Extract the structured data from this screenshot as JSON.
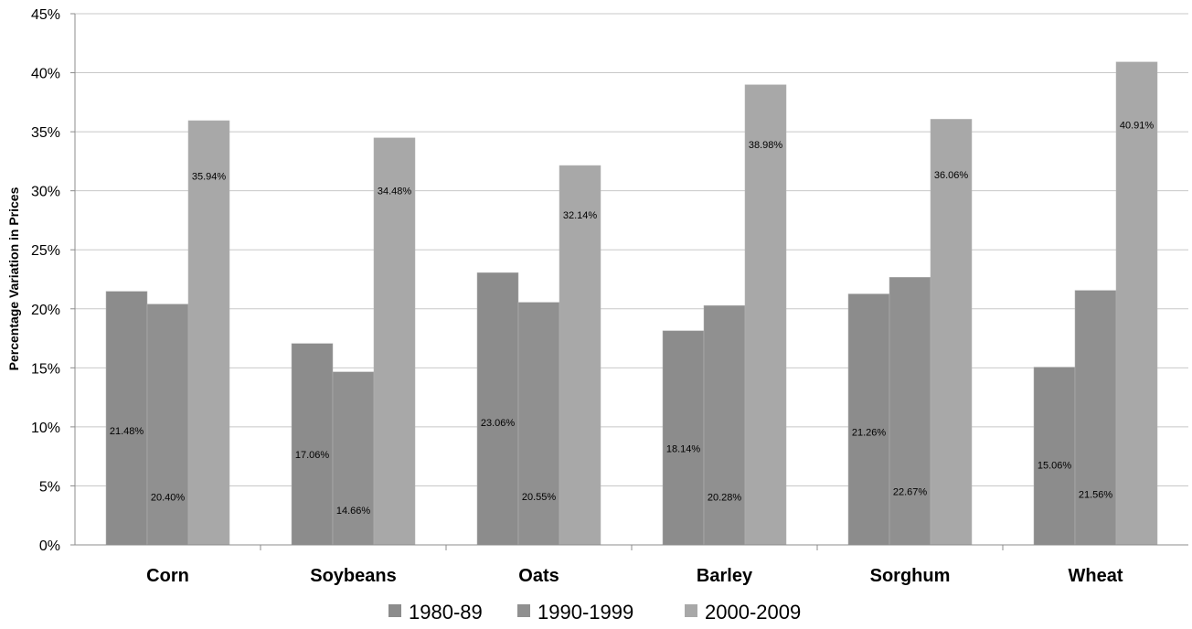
{
  "chart_data": {
    "type": "bar",
    "title": "",
    "xlabel": "",
    "ylabel": "Percentage Variation in Prices",
    "categories": [
      "Corn",
      "Soybeans",
      "Oats",
      "Barley",
      "Sorghum",
      "Wheat"
    ],
    "series": [
      {
        "name": "1980-89",
        "color": "#8c8c8c",
        "values": [
          21.48,
          17.06,
          23.06,
          18.14,
          21.26,
          15.06
        ],
        "labels": [
          "21.48%",
          "17.06%",
          "23.06%",
          "18.14%",
          "21.26%",
          "15.06%"
        ]
      },
      {
        "name": "1990-1999",
        "color": "#909090",
        "values": [
          20.4,
          14.66,
          20.55,
          20.28,
          22.67,
          21.56
        ],
        "labels": [
          "20.40%",
          "14.66%",
          "20.55%",
          "20.28%",
          "22.67%",
          "21.56%"
        ]
      },
      {
        "name": "2000-2009",
        "color": "#a8a8a8",
        "values": [
          35.94,
          34.48,
          32.14,
          38.98,
          36.06,
          40.91
        ],
        "labels": [
          "35.94%",
          "34.48%",
          "32.14%",
          "38.98%",
          "36.06%",
          "40.91%"
        ]
      }
    ],
    "ylim": [
      0,
      45
    ],
    "yticks": [
      0,
      5,
      10,
      15,
      20,
      25,
      30,
      35,
      40,
      45
    ],
    "ytick_labels": [
      "0%",
      "5%",
      "10%",
      "15%",
      "20%",
      "25%",
      "30%",
      "35%",
      "40%",
      "45%"
    ],
    "grid": true,
    "legend_position": "bottom"
  }
}
